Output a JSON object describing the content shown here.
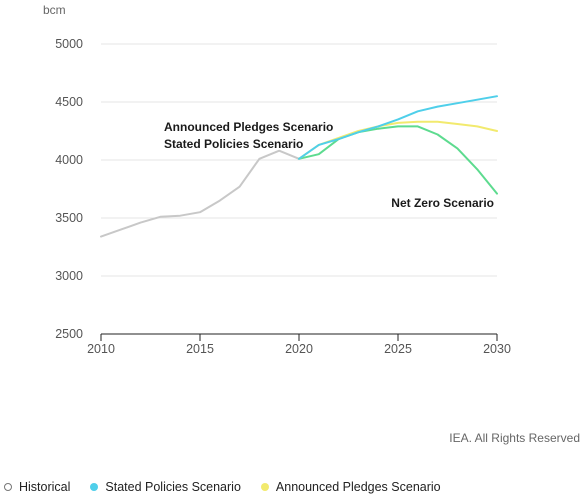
{
  "chart_data": {
    "type": "line",
    "ylabel": "bcm",
    "xlim": [
      2010,
      2030
    ],
    "ylim": [
      2500,
      5000
    ],
    "x_ticks": [
      "2010",
      "2015",
      "2020",
      "2025",
      "2030"
    ],
    "y_ticks": [
      "2500",
      "3000",
      "3500",
      "4000",
      "4500",
      "5000"
    ],
    "grid": "horizontal",
    "series": [
      {
        "name": "Historical",
        "color": "#c8c8c8",
        "x": [
          2010,
          2011,
          2012,
          2013,
          2014,
          2015,
          2016,
          2017,
          2018,
          2019,
          2020
        ],
        "y": [
          3340,
          3400,
          3460,
          3510,
          3520,
          3550,
          3650,
          3770,
          4010,
          4080,
          4010
        ]
      },
      {
        "name": "Stated Policies Scenario",
        "color": "#4fcfea",
        "x": [
          2020,
          2021,
          2022,
          2023,
          2024,
          2025,
          2026,
          2027,
          2028,
          2029,
          2030
        ],
        "y": [
          4010,
          4130,
          4180,
          4240,
          4290,
          4350,
          4420,
          4460,
          4490,
          4520,
          4550
        ]
      },
      {
        "name": "Announced Pledges Scenario",
        "color": "#f2ea6e",
        "x": [
          2020,
          2021,
          2022,
          2023,
          2024,
          2025,
          2026,
          2027,
          2028,
          2029,
          2030
        ],
        "y": [
          4010,
          4130,
          4190,
          4250,
          4290,
          4320,
          4330,
          4330,
          4310,
          4290,
          4250
        ]
      },
      {
        "name": "Net Zero Scenario",
        "color": "#5ddb8f",
        "x": [
          2020,
          2021,
          2022,
          2023,
          2024,
          2025,
          2026,
          2027,
          2028,
          2029,
          2030
        ],
        "y": [
          4010,
          4050,
          4180,
          4240,
          4270,
          4290,
          4290,
          4220,
          4100,
          3920,
          3710
        ]
      }
    ],
    "annotations": [
      {
        "text": "Announced Pledges Scenario",
        "anchor": "above-center"
      },
      {
        "text": "Stated Policies Scenario",
        "anchor": "center"
      },
      {
        "text": "Net Zero Scenario",
        "anchor": "lower-right"
      }
    ],
    "legend": {
      "position": "bottom-left",
      "items": [
        {
          "label": "Historical",
          "color": "#ffffff",
          "style": "hollow"
        },
        {
          "label": "Stated Policies Scenario",
          "color": "#4fcfea",
          "style": "filled"
        },
        {
          "label": "Announced Pledges Scenario",
          "color": "#f2ea6e",
          "style": "filled"
        }
      ]
    },
    "credit": "IEA. All Rights Reserved"
  }
}
